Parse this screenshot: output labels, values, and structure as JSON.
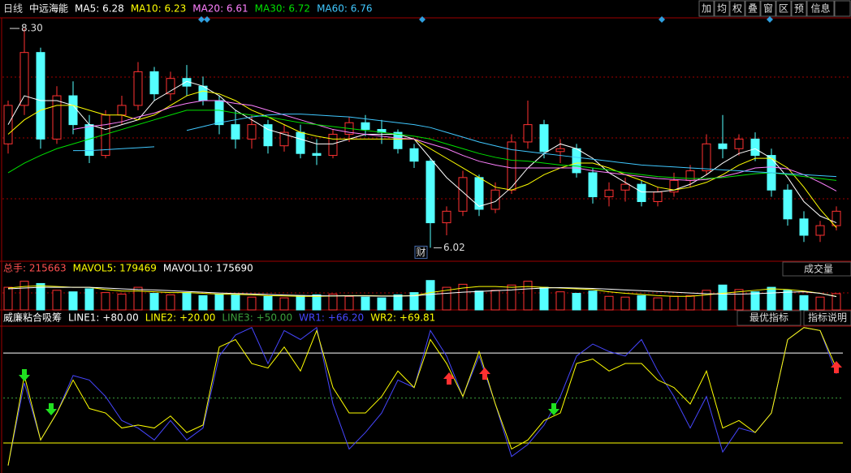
{
  "toolbar": {
    "period": "日线",
    "stock": "中远海能",
    "buttons": [
      "加",
      "均",
      "权",
      "叠",
      "窗",
      "区",
      "预",
      "信息"
    ]
  },
  "panel_buttons": {
    "volume": "成交量",
    "best": "最优指标",
    "help": "指标说明"
  },
  "chart_data": [
    {
      "type": "candlestick",
      "up_color": "#ff3232",
      "down_color": "#54ffff",
      "ylim": [
        5.88,
        8.41
      ],
      "high_label": "8.30",
      "low_label": "6.02",
      "event_label": "财",
      "open": [
        7.1,
        7.5,
        8.05,
        7.15,
        7.6,
        7.3,
        6.98,
        7.4,
        7.5,
        7.85,
        7.62,
        7.78,
        7.7,
        7.55,
        7.3,
        7.15,
        7.3,
        7.08,
        7.22,
        7.0,
        6.98,
        7.2,
        7.32,
        7.25,
        7.22,
        7.05,
        6.92,
        6.28,
        6.4,
        6.75,
        6.42,
        6.62,
        7.12,
        7.3,
        7.02,
        7.05,
        6.8,
        6.55,
        6.62,
        6.68,
        6.5,
        6.6,
        6.72,
        6.82,
        7.1,
        7.05,
        7.15,
        6.98,
        6.62,
        6.32,
        6.15,
        6.25
      ],
      "high": [
        7.55,
        8.3,
        8.1,
        7.7,
        7.75,
        7.4,
        7.45,
        7.6,
        7.95,
        7.9,
        7.85,
        7.92,
        7.8,
        7.6,
        7.45,
        7.4,
        7.35,
        7.3,
        7.3,
        7.15,
        7.25,
        7.38,
        7.4,
        7.35,
        7.25,
        7.1,
        6.95,
        6.45,
        6.82,
        6.78,
        6.7,
        7.2,
        7.55,
        7.35,
        7.15,
        7.1,
        6.85,
        6.7,
        6.75,
        6.72,
        6.65,
        6.8,
        6.88,
        7.2,
        7.4,
        7.2,
        7.22,
        7.05,
        6.68,
        6.4,
        6.3,
        6.45
      ],
      "low": [
        7.0,
        7.4,
        7.05,
        7.1,
        7.2,
        6.9,
        6.95,
        7.3,
        7.45,
        7.55,
        7.55,
        7.6,
        7.5,
        7.2,
        7.05,
        7.05,
        7.0,
        7.02,
        6.95,
        6.88,
        6.95,
        7.12,
        7.18,
        7.1,
        7.0,
        6.85,
        6.02,
        6.15,
        6.35,
        6.35,
        6.38,
        6.58,
        7.05,
        6.95,
        6.9,
        6.75,
        6.48,
        6.45,
        6.5,
        6.45,
        6.45,
        6.55,
        6.65,
        6.78,
        6.95,
        6.98,
        6.92,
        6.55,
        6.25,
        6.08,
        6.08,
        6.2
      ],
      "close": [
        7.5,
        8.05,
        7.15,
        7.6,
        7.3,
        6.98,
        7.4,
        7.5,
        7.85,
        7.62,
        7.78,
        7.7,
        7.55,
        7.3,
        7.15,
        7.3,
        7.08,
        7.22,
        7.0,
        6.98,
        7.2,
        7.32,
        7.25,
        7.22,
        7.05,
        6.92,
        6.28,
        6.4,
        6.75,
        6.42,
        6.62,
        7.12,
        7.3,
        7.02,
        7.05,
        6.8,
        6.55,
        6.62,
        6.68,
        6.5,
        6.6,
        6.72,
        6.82,
        7.1,
        7.05,
        7.15,
        6.98,
        6.62,
        6.32,
        6.15,
        6.25,
        6.4
      ],
      "series": [
        {
          "name": "MA5: 6.28",
          "color": "#ffffff",
          "values": [
            7.3,
            7.6,
            7.55,
            7.55,
            7.5,
            7.3,
            7.25,
            7.3,
            7.35,
            7.55,
            7.65,
            7.75,
            7.7,
            7.6,
            7.45,
            7.35,
            7.25,
            7.2,
            7.15,
            7.1,
            7.1,
            7.15,
            7.2,
            7.2,
            7.2,
            7.15,
            6.95,
            6.75,
            6.6,
            6.45,
            6.5,
            6.65,
            6.85,
            7.0,
            7.1,
            7.05,
            6.95,
            6.8,
            6.7,
            6.6,
            6.6,
            6.62,
            6.68,
            6.78,
            6.9,
            7.0,
            7.05,
            6.95,
            6.75,
            6.5,
            6.35,
            6.28
          ]
        },
        {
          "name": "MA10: 6.23",
          "color": "#ffff00",
          "values": [
            7.2,
            7.35,
            7.45,
            7.5,
            7.5,
            7.45,
            7.4,
            7.4,
            7.35,
            7.4,
            7.5,
            7.6,
            7.65,
            7.62,
            7.55,
            7.45,
            7.38,
            7.3,
            7.22,
            7.18,
            7.15,
            7.15,
            7.15,
            7.15,
            7.15,
            7.15,
            7.05,
            6.95,
            6.85,
            6.75,
            6.65,
            6.62,
            6.68,
            6.78,
            6.85,
            6.9,
            6.9,
            6.85,
            6.78,
            6.72,
            6.65,
            6.62,
            6.65,
            6.7,
            6.78,
            6.88,
            6.95,
            6.95,
            6.85,
            6.65,
            6.42,
            6.23
          ]
        },
        {
          "name": "MA20: 6.61",
          "color": "#ff80ff",
          "values": [
            null,
            null,
            null,
            null,
            7.25,
            7.28,
            7.3,
            7.33,
            7.38,
            7.42,
            7.48,
            7.52,
            7.55,
            7.55,
            7.52,
            7.5,
            7.45,
            7.4,
            7.35,
            7.3,
            7.25,
            7.22,
            7.2,
            7.18,
            7.16,
            7.15,
            7.1,
            7.05,
            6.98,
            6.92,
            6.88,
            6.85,
            6.85,
            6.85,
            6.85,
            6.85,
            6.82,
            6.8,
            6.78,
            6.76,
            6.74,
            6.73,
            6.72,
            6.73,
            6.76,
            6.8,
            6.85,
            6.86,
            6.84,
            6.78,
            6.7,
            6.61
          ]
        },
        {
          "name": "MA30: 6.72",
          "color": "#00e000",
          "values": [
            6.8,
            6.9,
            6.98,
            7.05,
            7.1,
            7.15,
            7.2,
            7.25,
            7.3,
            7.35,
            7.4,
            7.45,
            7.45,
            7.45,
            7.42,
            7.4,
            7.38,
            7.35,
            7.32,
            7.3,
            7.28,
            7.26,
            7.24,
            7.22,
            7.2,
            7.18,
            7.15,
            7.1,
            7.05,
            7.0,
            6.96,
            6.93,
            6.92,
            6.9,
            6.88,
            6.87,
            6.85,
            6.83,
            6.8,
            6.78,
            6.76,
            6.75,
            6.74,
            6.74,
            6.75,
            6.77,
            6.79,
            6.8,
            6.78,
            6.76,
            6.74,
            6.72
          ]
        },
        {
          "name": "MA60: 6.76",
          "color": "#40c8ff",
          "values": [
            null,
            null,
            null,
            null,
            7.03,
            7.03,
            7.04,
            7.05,
            7.06,
            7.07,
            null,
            7.24,
            7.28,
            7.32,
            7.35,
            7.38,
            7.4,
            7.41,
            7.41,
            7.4,
            7.39,
            7.38,
            7.36,
            7.34,
            7.32,
            7.3,
            7.27,
            7.22,
            7.17,
            7.12,
            7.08,
            7.04,
            7.02,
            7.0,
            6.98,
            6.96,
            6.94,
            6.92,
            6.9,
            6.88,
            6.87,
            6.86,
            6.85,
            6.84,
            6.83,
            6.82,
            6.81,
            6.8,
            6.79,
            6.78,
            6.77,
            6.76
          ]
        }
      ]
    },
    {
      "type": "bar",
      "ylim": [
        0,
        430000
      ],
      "series": [
        {
          "name": "总手: 215663",
          "color": "#ff5050",
          "values": [
            300000,
            380000,
            350000,
            260000,
            240000,
            280000,
            230000,
            210000,
            300000,
            220000,
            200000,
            230000,
            190000,
            210000,
            200000,
            170000,
            180000,
            160000,
            190000,
            200000,
            210000,
            180000,
            170000,
            160000,
            200000,
            230000,
            390000,
            300000,
            340000,
            250000,
            260000,
            330000,
            380000,
            300000,
            240000,
            220000,
            250000,
            180000,
            170000,
            190000,
            160000,
            180000,
            190000,
            260000,
            330000,
            270000,
            240000,
            300000,
            260000,
            190000,
            170000,
            215663
          ]
        },
        {
          "name": "MAVOL5: 179469",
          "color": "#ffff00",
          "values": [
            290000,
            310000,
            320000,
            310000,
            300000,
            300000,
            270000,
            250000,
            250000,
            240000,
            230000,
            230000,
            220000,
            210000,
            205000,
            200000,
            190000,
            185000,
            180000,
            180000,
            185000,
            190000,
            190000,
            185000,
            185000,
            190000,
            230000,
            260000,
            290000,
            310000,
            310000,
            300000,
            310000,
            300000,
            290000,
            280000,
            270000,
            240000,
            220000,
            205000,
            190000,
            180000,
            180000,
            200000,
            220000,
            240000,
            260000,
            280000,
            270000,
            250000,
            220000,
            179469
          ]
        },
        {
          "name": "MAVOL10: 175690",
          "color": "#ffffff",
          "values": [
            280000,
            290000,
            300000,
            300000,
            300000,
            300000,
            290000,
            280000,
            270000,
            265000,
            255000,
            245000,
            235000,
            225000,
            218000,
            212000,
            205000,
            198000,
            192000,
            188000,
            186000,
            185000,
            185000,
            183000,
            183000,
            187000,
            205000,
            220000,
            235000,
            245000,
            255000,
            265000,
            280000,
            290000,
            295000,
            290000,
            285000,
            275000,
            265000,
            255000,
            245000,
            235000,
            225000,
            215000,
            210000,
            210000,
            215000,
            225000,
            235000,
            240000,
            220000,
            175690
          ]
        }
      ]
    },
    {
      "type": "line",
      "title": "威廉粘合吸筹",
      "ylim": [
        0,
        99
      ],
      "ref_lines": [
        {
          "value": 80,
          "label": "LINE1: +80.00",
          "color": "#ffffff"
        },
        {
          "value": 20,
          "label": "LINE2: +20.00",
          "color": "#ffff00"
        },
        {
          "value": 50,
          "label": "LINE3: +50.00",
          "color": "#3ca03c"
        }
      ],
      "series": [
        {
          "name": "WR1: +66.20",
          "color": "#4646ff",
          "values": [
            5,
            60,
            22,
            40,
            65,
            62,
            51,
            35,
            30,
            22,
            35,
            22,
            30,
            78,
            92,
            97,
            73,
            95,
            89,
            97,
            46,
            16,
            27,
            40,
            62,
            57,
            95,
            78,
            51,
            78,
            46,
            11,
            19,
            32,
            51,
            78,
            86,
            81,
            78,
            89,
            68,
            51,
            30,
            51,
            14,
            30,
            27,
            40,
            89,
            97,
            95,
            66.2
          ]
        },
        {
          "name": "WR2: +69.81",
          "color": "#ffff00",
          "values": [
            5,
            65,
            22,
            40,
            62,
            43,
            40,
            30,
            32,
            30,
            38,
            27,
            32,
            84,
            89,
            73,
            70,
            84,
            68,
            95,
            57,
            40,
            40,
            51,
            68,
            57,
            89,
            73,
            51,
            81,
            46,
            16,
            22,
            35,
            40,
            73,
            76,
            68,
            73,
            73,
            62,
            57,
            46,
            68,
            30,
            35,
            27,
            40,
            89,
            97,
            95,
            69.81
          ]
        }
      ]
    }
  ]
}
